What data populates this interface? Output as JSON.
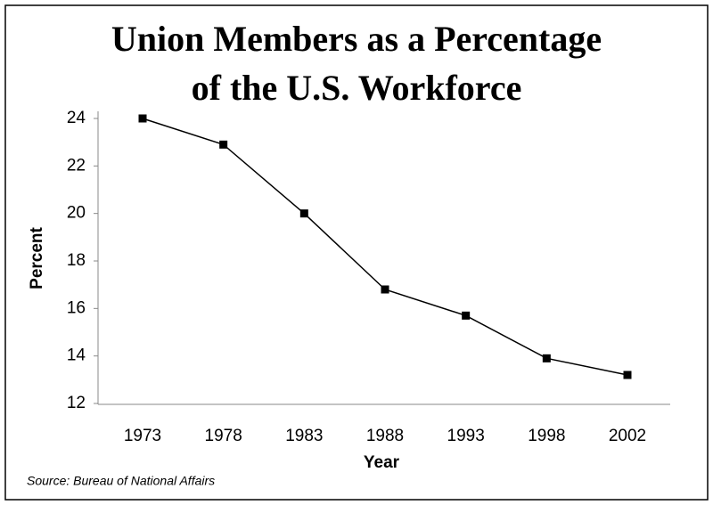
{
  "chart_data": {
    "type": "line",
    "title": [
      "Union Members as a Percentage",
      "of the U.S. Workforce"
    ],
    "x_label": "Year",
    "y_label": "Percent",
    "categories": [
      "1973",
      "1978",
      "1983",
      "1988",
      "1993",
      "1998",
      "2002"
    ],
    "values": [
      24,
      22.9,
      20,
      16.8,
      15.7,
      13.9,
      13.2
    ],
    "color": "#000000",
    "ylim": [
      12,
      24
    ],
    "yticks": [
      12,
      14,
      16,
      18,
      20,
      22,
      24
    ],
    "grid": false,
    "source": "Source:  Bureau of National Affairs"
  }
}
